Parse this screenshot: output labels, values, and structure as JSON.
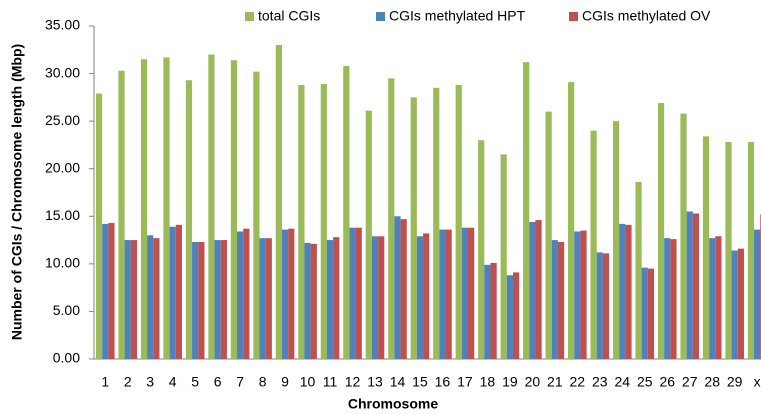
{
  "chart_data": {
    "type": "bar",
    "xlabel": "Chromosome",
    "ylabel": "Number of  CGIs / Chromosome length (Mbp)",
    "categories": [
      "1",
      "2",
      "3",
      "4",
      "5",
      "6",
      "7",
      "8",
      "9",
      "10",
      "11",
      "12",
      "13",
      "14",
      "15",
      "16",
      "17",
      "18",
      "19",
      "20",
      "21",
      "22",
      "23",
      "24",
      "25",
      "26",
      "27",
      "28",
      "29",
      "x"
    ],
    "series": [
      {
        "name": "total CGIs",
        "color": "#9bbb59",
        "values": [
          27.9,
          30.3,
          31.5,
          31.7,
          29.3,
          32.0,
          31.4,
          30.2,
          33.0,
          28.8,
          28.9,
          30.8,
          26.1,
          29.5,
          27.5,
          28.5,
          28.8,
          23.0,
          21.5,
          31.2,
          26.0,
          29.1,
          24.0,
          25.0,
          18.6,
          26.9,
          25.8,
          23.4,
          22.8,
          22.8
        ]
      },
      {
        "name": "CGIs methylated HPT",
        "color": "#4f81bd",
        "values": [
          14.2,
          12.5,
          13.0,
          13.9,
          12.3,
          12.5,
          13.4,
          12.7,
          13.6,
          12.2,
          12.5,
          13.8,
          12.9,
          15.0,
          12.9,
          13.6,
          13.8,
          9.9,
          8.8,
          14.4,
          12.5,
          13.4,
          11.2,
          14.2,
          9.6,
          12.7,
          15.5,
          12.7,
          11.4,
          13.6
        ]
      },
      {
        "name": "CGIs methylated OV",
        "color": "#c0504d",
        "values": [
          14.3,
          12.5,
          12.7,
          14.1,
          12.3,
          12.5,
          13.7,
          12.7,
          13.7,
          12.1,
          12.8,
          13.8,
          12.9,
          14.7,
          13.2,
          13.6,
          13.8,
          10.1,
          9.1,
          14.6,
          12.3,
          13.5,
          11.1,
          14.1,
          9.5,
          12.6,
          15.3,
          12.9,
          11.6,
          15.2
        ]
      }
    ],
    "ylim": [
      0,
      35
    ],
    "yticks": [
      {
        "value": 0,
        "label": "0.00"
      },
      {
        "value": 5,
        "label": "5.00"
      },
      {
        "value": 10,
        "label": "10.00"
      },
      {
        "value": 15,
        "label": "15.00"
      },
      {
        "value": 20,
        "label": "20.00"
      },
      {
        "value": 25,
        "label": "25.00"
      },
      {
        "value": 30,
        "label": "30.00"
      },
      {
        "value": 35,
        "label": "35.00"
      }
    ],
    "grid": false,
    "legend": "top"
  }
}
